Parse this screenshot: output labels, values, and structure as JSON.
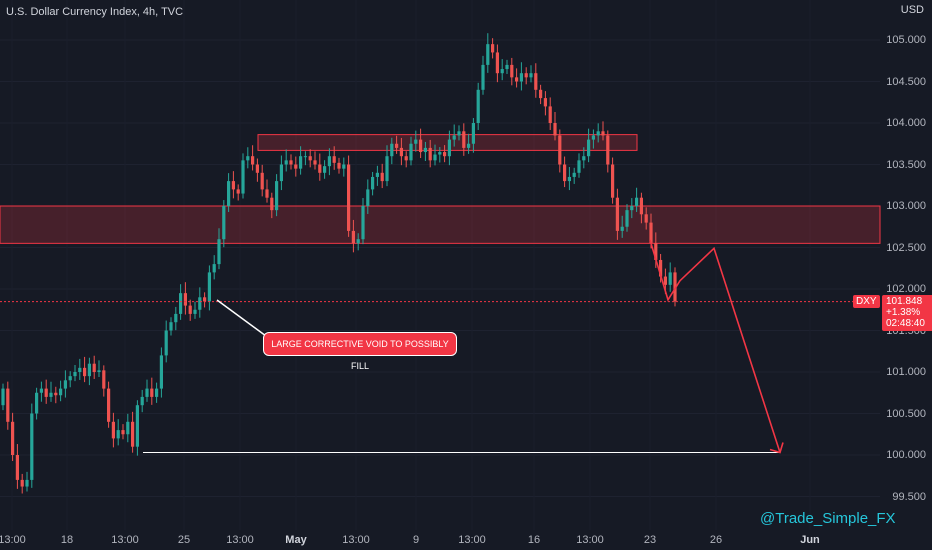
{
  "header": {
    "title": "U.S. Dollar Currency Index, 4h, TVC",
    "currency": "USD"
  },
  "price_tag": {
    "symbol": "DXY",
    "price": "101.848",
    "change": "+1.38%",
    "countdown": "02:48:40"
  },
  "annotation": "LARGE CORRECTIVE VOID TO POSSIBLY FILL",
  "watermark": "@Trade_Simple_FX",
  "colors": {
    "background": "#161a25",
    "up": "#26a69a",
    "down": "#ef5350",
    "zone": "#f23645",
    "target_line": "#ffffff"
  },
  "chart_data": {
    "type": "candlestick",
    "title": "U.S. Dollar Currency Index, 4h, TVC",
    "timeframe": "4h",
    "ylabel": "USD",
    "ylim": [
      99.3,
      105.25
    ],
    "y_ticks": [
      "105.000",
      "104.500",
      "104.000",
      "103.500",
      "103.000",
      "102.500",
      "102.000",
      "101.500",
      "101.000",
      "100.500",
      "100.000",
      "99.500"
    ],
    "x_ticks": [
      "13:00",
      "18",
      "13:00",
      "25",
      "13:00",
      "May",
      "13:00",
      "9",
      "13:00",
      "16",
      "13:00",
      "23",
      "26",
      "Jun"
    ],
    "last_price": 101.848,
    "zones": [
      {
        "from": 102.55,
        "to": 103.0
      },
      {
        "from": 103.67,
        "to": 103.86
      }
    ],
    "target_level": 100.03,
    "projection": [
      101.87,
      102.1,
      102.49,
      100.03
    ],
    "closes": [
      100.8,
      100.4,
      100.0,
      99.7,
      99.62,
      99.7,
      100.5,
      100.75,
      100.8,
      100.7,
      100.75,
      100.72,
      100.8,
      100.9,
      100.95,
      101.0,
      101.05,
      100.95,
      101.1,
      101.0,
      101.02,
      100.8,
      100.4,
      100.2,
      100.3,
      100.25,
      100.4,
      100.1,
      100.6,
      100.7,
      100.8,
      100.7,
      100.8,
      101.2,
      101.5,
      101.6,
      101.7,
      101.95,
      101.8,
      101.7,
      101.75,
      101.9,
      101.85,
      102.2,
      102.3,
      102.6,
      103.0,
      103.3,
      103.2,
      103.15,
      103.55,
      103.6,
      103.5,
      103.4,
      103.2,
      103.1,
      102.95,
      103.3,
      103.5,
      103.55,
      103.5,
      103.45,
      103.6,
      103.6,
      103.55,
      103.5,
      103.4,
      103.48,
      103.6,
      103.52,
      103.45,
      103.5,
      102.7,
      102.55,
      102.6,
      103.0,
      103.2,
      103.35,
      103.4,
      103.3,
      103.6,
      103.75,
      103.7,
      103.6,
      103.55,
      103.75,
      103.8,
      103.65,
      103.7,
      103.55,
      103.62,
      103.65,
      103.6,
      103.8,
      103.85,
      103.9,
      103.7,
      103.75,
      104.0,
      104.4,
      104.7,
      104.95,
      104.85,
      104.6,
      104.65,
      104.7,
      104.55,
      104.5,
      104.6,
      104.55,
      104.6,
      104.4,
      104.3,
      104.2,
      104.0,
      103.85,
      103.5,
      103.3,
      103.35,
      103.4,
      103.55,
      103.6,
      103.8,
      103.85,
      103.9,
      103.85,
      103.5,
      103.1,
      102.7,
      102.75,
      102.95,
      103.0,
      103.1,
      102.9,
      102.8,
      102.55,
      102.35,
      102.15,
      102.05,
      102.2,
      101.85
    ]
  }
}
